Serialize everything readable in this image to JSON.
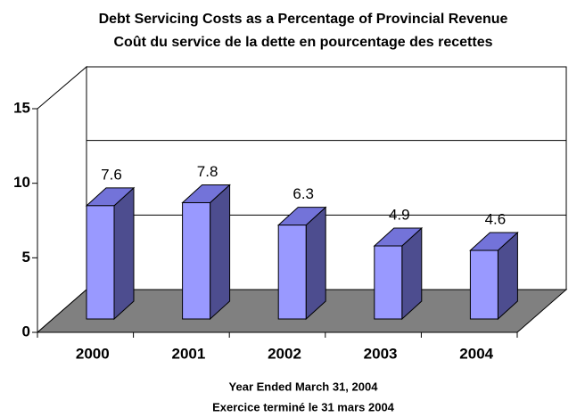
{
  "chart_data": {
    "type": "bar3d",
    "title": "Debt Servicing Costs as a Percentage of Provincial Revenue",
    "subtitle": "Coût du service de la dette en pourcentage des recettes",
    "x_label_lines": [
      "Year Ended March 31, 2004",
      "Exercice terminé le 31 mars 2004"
    ],
    "categories": [
      "2000",
      "2001",
      "2002",
      "2003",
      "2004"
    ],
    "values": [
      7.6,
      7.8,
      6.3,
      4.9,
      4.6
    ],
    "color": "#9999ff",
    "ylim": [
      0,
      15
    ],
    "yticks": [
      0,
      5,
      10,
      15
    ],
    "grid": true
  }
}
